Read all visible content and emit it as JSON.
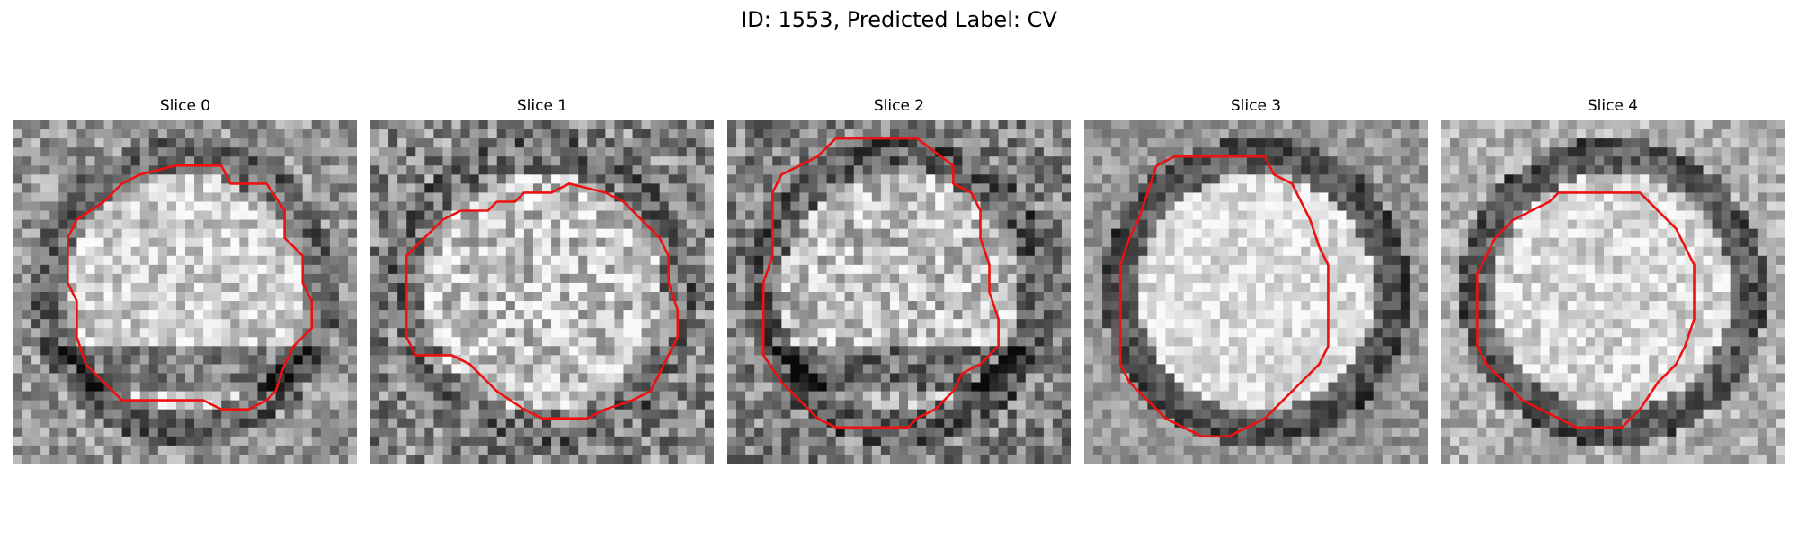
{
  "figure": {
    "title": "ID: 1553, Predicted Label: CV"
  },
  "contour_color": "#ee1111",
  "panels": [
    {
      "title": "Slice 0",
      "texture": {
        "seed": 11,
        "center_gray": 205,
        "bg_gray": 150,
        "ring_gray": 85,
        "noise": 55,
        "dark_lower": true
      },
      "contour": [
        [
          14,
          6
        ],
        [
          18,
          5
        ],
        [
          23,
          5
        ],
        [
          24,
          7
        ],
        [
          28,
          7
        ],
        [
          30,
          10
        ],
        [
          30,
          13
        ],
        [
          32,
          15
        ],
        [
          32,
          18
        ],
        [
          33,
          20
        ],
        [
          33,
          23
        ],
        [
          31,
          25
        ],
        [
          30,
          27
        ],
        [
          29,
          30
        ],
        [
          28,
          31
        ],
        [
          26,
          32
        ],
        [
          23,
          32
        ],
        [
          21,
          31
        ],
        [
          16,
          31
        ],
        [
          12,
          31
        ],
        [
          10,
          29
        ],
        [
          8,
          27
        ],
        [
          7,
          24
        ],
        [
          7,
          20
        ],
        [
          6,
          18
        ],
        [
          6,
          13
        ],
        [
          7,
          11
        ],
        [
          10,
          9
        ],
        [
          12,
          7
        ]
      ]
    },
    {
      "title": "Slice 1",
      "texture": {
        "seed": 23,
        "center_gray": 195,
        "bg_gray": 135,
        "ring_gray": 100,
        "noise": 70,
        "dark_lower": false
      },
      "contour": [
        [
          10,
          10
        ],
        [
          13,
          10
        ],
        [
          14,
          9
        ],
        [
          16,
          9
        ],
        [
          17,
          8
        ],
        [
          20,
          8
        ],
        [
          22,
          7
        ],
        [
          26,
          8
        ],
        [
          28,
          9
        ],
        [
          30,
          11
        ],
        [
          32,
          13
        ],
        [
          33,
          15
        ],
        [
          33,
          18
        ],
        [
          34,
          21
        ],
        [
          34,
          24
        ],
        [
          33,
          26
        ],
        [
          32,
          28
        ],
        [
          31,
          30
        ],
        [
          29,
          31
        ],
        [
          26,
          32
        ],
        [
          24,
          33
        ],
        [
          19,
          33
        ],
        [
          17,
          32
        ],
        [
          14,
          30
        ],
        [
          12,
          28
        ],
        [
          11,
          27
        ],
        [
          9,
          26
        ],
        [
          5,
          26
        ],
        [
          4,
          24
        ],
        [
          4,
          19
        ],
        [
          4,
          15
        ],
        [
          6,
          13
        ],
        [
          8,
          11
        ]
      ]
    },
    {
      "title": "Slice 2",
      "texture": {
        "seed": 37,
        "center_gray": 190,
        "bg_gray": 130,
        "ring_gray": 80,
        "noise": 65,
        "dark_lower": true
      },
      "contour": [
        [
          12,
          2
        ],
        [
          15,
          2
        ],
        [
          18,
          2
        ],
        [
          21,
          2
        ],
        [
          25,
          5
        ],
        [
          25,
          7
        ],
        [
          27,
          8
        ],
        [
          28,
          10
        ],
        [
          28,
          13
        ],
        [
          29,
          16
        ],
        [
          29,
          19
        ],
        [
          30,
          22
        ],
        [
          30,
          25
        ],
        [
          28,
          27
        ],
        [
          26,
          28
        ],
        [
          25,
          30
        ],
        [
          23,
          32
        ],
        [
          21,
          33
        ],
        [
          20,
          34
        ],
        [
          15,
          34
        ],
        [
          12,
          34
        ],
        [
          10,
          33
        ],
        [
          8,
          31
        ],
        [
          6,
          29
        ],
        [
          4,
          26
        ],
        [
          4,
          22
        ],
        [
          4,
          18
        ],
        [
          5,
          15
        ],
        [
          5,
          12
        ],
        [
          5,
          8
        ],
        [
          6,
          6
        ],
        [
          8,
          5
        ],
        [
          10,
          4
        ]
      ]
    },
    {
      "title": "Slice 3",
      "texture": {
        "seed": 53,
        "center_gray": 222,
        "bg_gray": 150,
        "ring_gray": 60,
        "noise": 40,
        "dark_lower": false
      },
      "contour": [
        [
          8,
          5
        ],
        [
          10,
          4
        ],
        [
          12,
          4
        ],
        [
          17,
          4
        ],
        [
          20,
          4
        ],
        [
          21,
          6
        ],
        [
          23,
          7
        ],
        [
          24,
          9
        ],
        [
          25,
          11
        ],
        [
          26,
          14
        ],
        [
          27,
          16
        ],
        [
          27,
          19
        ],
        [
          27,
          22
        ],
        [
          27,
          25
        ],
        [
          26,
          27
        ],
        [
          24,
          29
        ],
        [
          22,
          31
        ],
        [
          20,
          33
        ],
        [
          18,
          34
        ],
        [
          16,
          35
        ],
        [
          13,
          35
        ],
        [
          11,
          34
        ],
        [
          9,
          33
        ],
        [
          7,
          31
        ],
        [
          5,
          29
        ],
        [
          4,
          27
        ],
        [
          4,
          24
        ],
        [
          4,
          20
        ],
        [
          4,
          16
        ],
        [
          5,
          13
        ],
        [
          6,
          11
        ],
        [
          7,
          8
        ]
      ]
    },
    {
      "title": "Slice 4",
      "texture": {
        "seed": 71,
        "center_gray": 215,
        "bg_gray": 175,
        "ring_gray": 70,
        "noise": 45,
        "dark_lower": false
      },
      "contour": [
        [
          13,
          8
        ],
        [
          17,
          8
        ],
        [
          22,
          8
        ],
        [
          24,
          10
        ],
        [
          26,
          12
        ],
        [
          27,
          14
        ],
        [
          28,
          16
        ],
        [
          28,
          19
        ],
        [
          28,
          22
        ],
        [
          27,
          25
        ],
        [
          26,
          27
        ],
        [
          24,
          29
        ],
        [
          22,
          32
        ],
        [
          20,
          34
        ],
        [
          15,
          34
        ],
        [
          13,
          33
        ],
        [
          11,
          32
        ],
        [
          9,
          31
        ],
        [
          7,
          29
        ],
        [
          5,
          27
        ],
        [
          4,
          25
        ],
        [
          4,
          21
        ],
        [
          4,
          17
        ],
        [
          5,
          15
        ],
        [
          6,
          13
        ],
        [
          8,
          11
        ],
        [
          10,
          10
        ],
        [
          12,
          9
        ]
      ]
    }
  ]
}
